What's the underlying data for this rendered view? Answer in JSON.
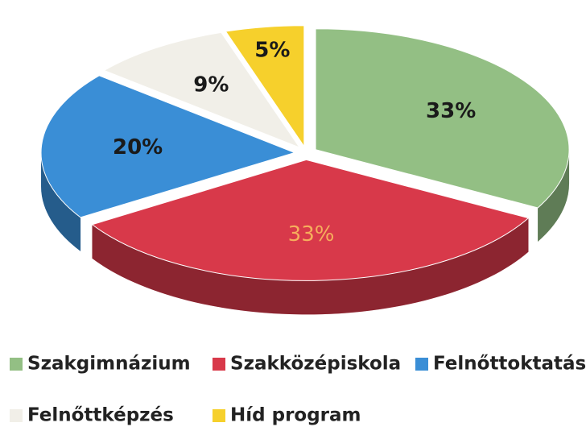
{
  "chart_data": {
    "type": "pie",
    "categories": [
      "Szakgimnázium",
      "Szakközépiskola",
      "Felnőttoktatás",
      "Felnőttképzés",
      "Híd program"
    ],
    "values": [
      33,
      33,
      20,
      9,
      5
    ],
    "value_labels": [
      "33%",
      "33%",
      "20%",
      "9%",
      "5%"
    ],
    "colors": [
      "#93bf84",
      "#d8394a",
      "#3a8ed6",
      "#f1efe8",
      "#f6d02c"
    ],
    "legend": "bottom"
  }
}
